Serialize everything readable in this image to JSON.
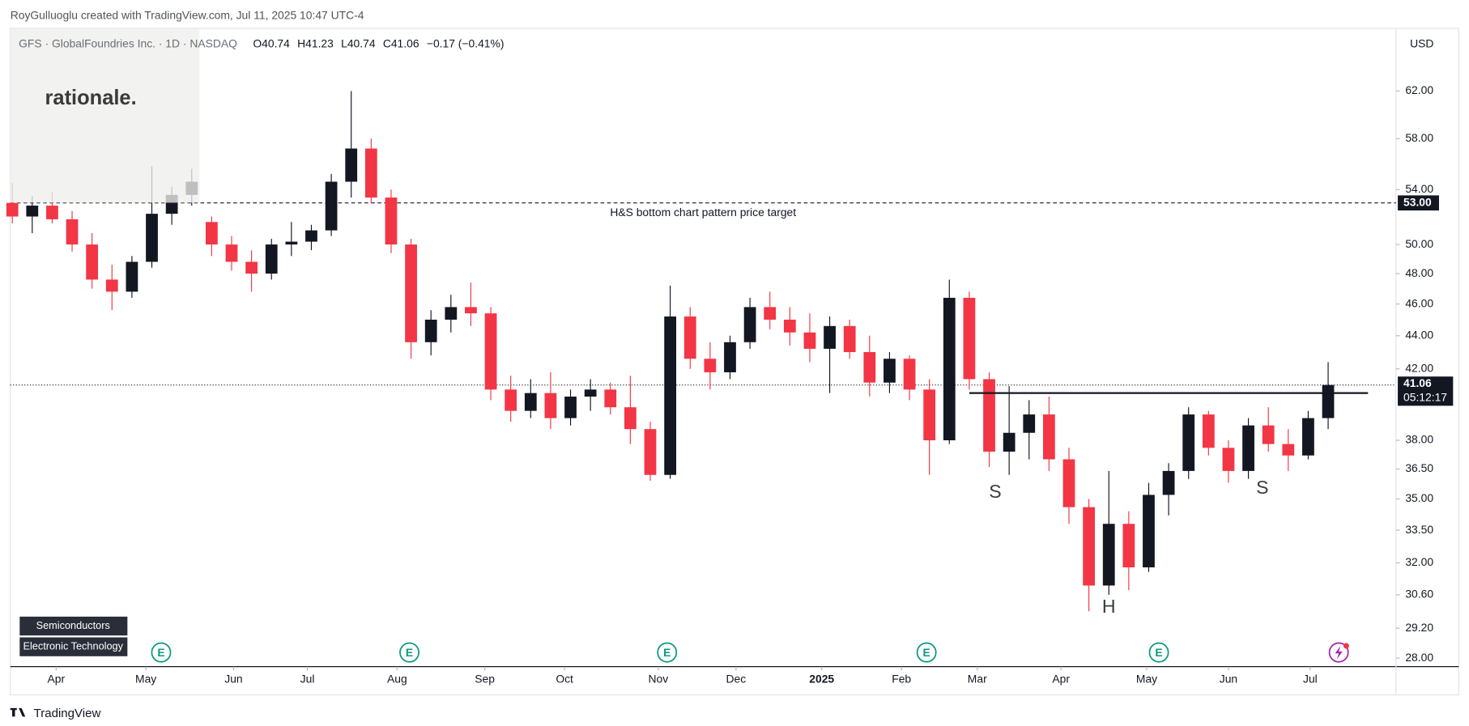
{
  "credit": "RoyGulluoglu created with TradingView.com, Jul 11, 2025 10:47 UTC-4",
  "logo": "rationale.",
  "footer": "TradingView",
  "sector_tags": [
    "Semiconductors",
    "Electronic Technology"
  ],
  "earnings_markers": [
    "E",
    "E",
    "E",
    "E",
    "E"
  ],
  "chart_data": {
    "type": "candlestick",
    "title": "GFS · GlobalFoundries Inc. · 1D · NASDAQ",
    "ohlc_labels": [
      "O40.74",
      "H41.23",
      "L40.74",
      "C41.06",
      "−0.17 (−0.41%)"
    ],
    "currency": "USD",
    "log_scale": true,
    "up_color": "#131722",
    "down_color": "#f23645",
    "candles": [
      [
        53.0,
        54.5,
        51.5,
        52.0
      ],
      [
        52.0,
        53.5,
        50.8,
        52.8
      ],
      [
        52.8,
        53.8,
        51.5,
        51.8
      ],
      [
        51.8,
        52.4,
        49.5,
        50.0
      ],
      [
        50.0,
        50.8,
        47.0,
        47.6
      ],
      [
        47.6,
        48.6,
        45.6,
        46.8
      ],
      [
        46.8,
        49.2,
        46.4,
        48.8
      ],
      [
        48.8,
        55.8,
        48.4,
        52.2
      ],
      [
        52.2,
        54.2,
        51.4,
        53.6
      ],
      [
        53.6,
        55.6,
        52.8,
        54.6
      ],
      [
        51.6,
        52.0,
        49.2,
        50.0
      ],
      [
        50.0,
        50.6,
        48.2,
        48.8
      ],
      [
        48.8,
        49.6,
        46.8,
        48.0
      ],
      [
        48.0,
        50.4,
        47.6,
        50.0
      ],
      [
        50.0,
        51.6,
        49.2,
        50.2
      ],
      [
        50.2,
        51.4,
        49.6,
        51.0
      ],
      [
        51.0,
        55.2,
        50.6,
        54.6
      ],
      [
        54.6,
        62.0,
        53.4,
        57.2
      ],
      [
        57.2,
        58.0,
        53.0,
        53.4
      ],
      [
        53.4,
        54.0,
        49.4,
        50.0
      ],
      [
        50.0,
        50.4,
        42.6,
        43.6
      ],
      [
        43.6,
        45.6,
        42.8,
        45.0
      ],
      [
        45.0,
        46.6,
        44.2,
        45.8
      ],
      [
        45.8,
        47.4,
        44.6,
        45.4
      ],
      [
        45.4,
        45.8,
        40.2,
        40.8
      ],
      [
        40.8,
        41.6,
        39.0,
        39.6
      ],
      [
        39.6,
        41.4,
        39.2,
        40.6
      ],
      [
        40.6,
        41.8,
        38.6,
        39.2
      ],
      [
        39.2,
        40.8,
        38.8,
        40.4
      ],
      [
        40.4,
        41.4,
        39.6,
        40.8
      ],
      [
        40.8,
        41.2,
        39.4,
        39.8
      ],
      [
        39.8,
        41.6,
        37.8,
        38.6
      ],
      [
        38.6,
        39.0,
        35.9,
        36.2
      ],
      [
        36.2,
        47.2,
        36.0,
        45.2
      ],
      [
        45.2,
        45.8,
        42.0,
        42.6
      ],
      [
        42.6,
        43.6,
        40.8,
        41.8
      ],
      [
        41.8,
        44.0,
        41.4,
        43.6
      ],
      [
        43.6,
        46.4,
        43.2,
        45.8
      ],
      [
        45.8,
        46.8,
        44.4,
        45.0
      ],
      [
        45.0,
        45.8,
        43.4,
        44.2
      ],
      [
        44.2,
        45.4,
        42.4,
        43.2
      ],
      [
        43.2,
        45.2,
        40.6,
        44.6
      ],
      [
        44.6,
        45.0,
        42.6,
        43.0
      ],
      [
        43.0,
        44.0,
        40.4,
        41.2
      ],
      [
        41.2,
        43.0,
        40.6,
        42.6
      ],
      [
        42.6,
        42.8,
        40.2,
        40.8
      ],
      [
        40.8,
        41.4,
        36.2,
        38.0
      ],
      [
        38.0,
        47.6,
        37.8,
        46.4
      ],
      [
        46.4,
        46.8,
        40.8,
        41.4
      ],
      [
        41.4,
        41.8,
        36.6,
        37.4
      ],
      [
        37.4,
        41.0,
        36.2,
        38.4
      ],
      [
        38.4,
        40.2,
        37.0,
        39.4
      ],
      [
        39.4,
        40.4,
        36.4,
        37.0
      ],
      [
        37.0,
        37.6,
        33.8,
        34.6
      ],
      [
        34.6,
        35.0,
        29.9,
        31.0
      ],
      [
        31.0,
        36.4,
        30.6,
        33.8
      ],
      [
        33.8,
        34.4,
        30.8,
        31.8
      ],
      [
        31.8,
        35.8,
        31.6,
        35.2
      ],
      [
        35.2,
        36.8,
        34.2,
        36.4
      ],
      [
        36.4,
        39.8,
        36.0,
        39.4
      ],
      [
        39.4,
        39.6,
        37.2,
        37.6
      ],
      [
        37.6,
        38.0,
        35.8,
        36.4
      ],
      [
        36.4,
        39.2,
        36.0,
        38.8
      ],
      [
        38.8,
        39.8,
        37.4,
        37.8
      ],
      [
        37.8,
        38.6,
        36.4,
        37.2
      ],
      [
        37.2,
        39.6,
        37.0,
        39.2
      ],
      [
        39.2,
        42.4,
        38.6,
        41.06
      ]
    ],
    "xlim": [
      -0.1,
      69.4
    ],
    "xticks": [
      {
        "value": 2.2,
        "label": "Apr"
      },
      {
        "value": 6.7,
        "label": "May"
      },
      {
        "value": 11.1,
        "label": "Jun"
      },
      {
        "value": 14.8,
        "label": "Jul"
      },
      {
        "value": 19.3,
        "label": "Aug"
      },
      {
        "value": 23.7,
        "label": "Sep"
      },
      {
        "value": 27.7,
        "label": "Oct"
      },
      {
        "value": 32.4,
        "label": "Nov"
      },
      {
        "value": 36.3,
        "label": "Dec"
      },
      {
        "value": 40.6,
        "label": "2025"
      },
      {
        "value": 44.6,
        "label": "Feb"
      },
      {
        "value": 48.4,
        "label": "Mar"
      },
      {
        "value": 52.6,
        "label": "Apr"
      },
      {
        "value": 56.9,
        "label": "May"
      },
      {
        "value": 61.0,
        "label": "Jun"
      },
      {
        "value": 65.1,
        "label": "Jul"
      }
    ],
    "ylim": [
      27.67,
      67.7
    ],
    "yticks": [
      {
        "value": 62,
        "label": "62.00"
      },
      {
        "value": 58,
        "label": "58.00"
      },
      {
        "value": 54,
        "label": "54.00"
      },
      {
        "value": 50,
        "label": "50.00"
      },
      {
        "value": 48,
        "label": "48.00"
      },
      {
        "value": 46,
        "label": "46.00"
      },
      {
        "value": 44,
        "label": "44.00"
      },
      {
        "value": 42,
        "label": "42.00"
      },
      {
        "value": 38,
        "label": "38.00"
      },
      {
        "value": 36.5,
        "label": "36.50"
      },
      {
        "value": 35,
        "label": "35.00"
      },
      {
        "value": 33.5,
        "label": "33.50"
      },
      {
        "value": 32,
        "label": "32.00"
      },
      {
        "value": 30.6,
        "label": "30.60"
      },
      {
        "value": 29.2,
        "label": "29.20"
      },
      {
        "value": 28,
        "label": "28.00"
      }
    ],
    "target": {
      "value": 53,
      "label": "53.00",
      "text": "H&S bottom chart pattern price target"
    },
    "neckline": {
      "value": 40.6,
      "x": [
        48,
        68
      ]
    },
    "last_price": {
      "value": 41.06,
      "label": "41.06",
      "countdown": "05:12:17"
    },
    "annotations": [
      {
        "text": "S",
        "x": 49.3,
        "y": 35.3
      },
      {
        "text": "H",
        "x": 55.0,
        "y": 30.05
      },
      {
        "text": "S",
        "x": 62.7,
        "y": 35.5
      }
    ]
  }
}
